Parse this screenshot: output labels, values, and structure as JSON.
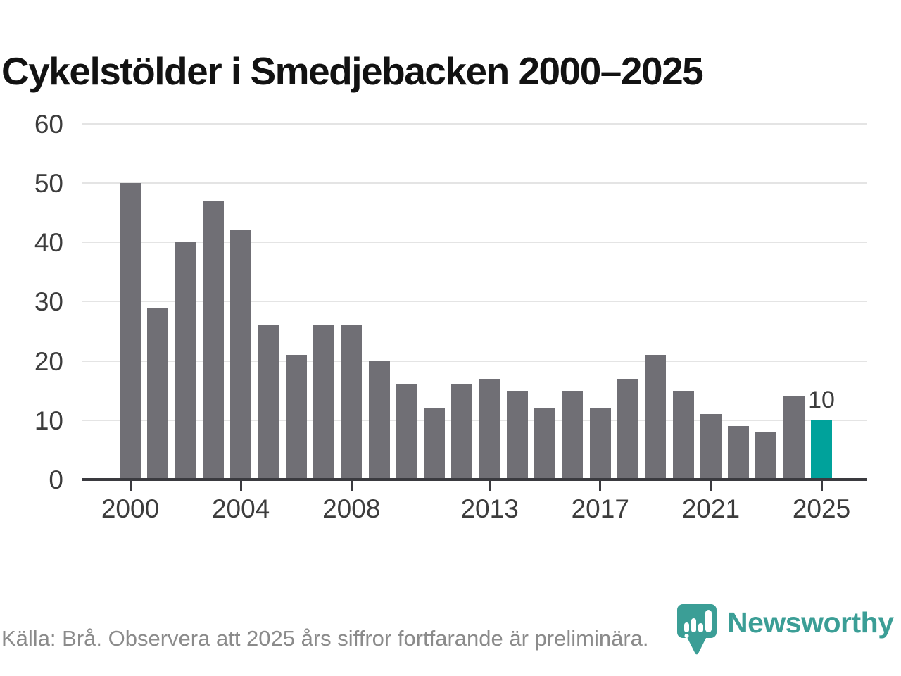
{
  "title": "Cykelstölder i Smedjebacken 2000–2025",
  "footer": {
    "source_note": "Källa: Brå. Observera att 2025 års siffror fortfarande är preliminära."
  },
  "branding": {
    "logo_text": "Newsworthy",
    "logo_icon": "newsworthy-pin-barchart-icon"
  },
  "colors": {
    "bar": "#706F75",
    "highlight": "#00A29B",
    "axis": "#3A3A3F",
    "grid": "#E4E4E4",
    "label": "#3C3C3C",
    "footer_text": "#8B8B8B",
    "logo": "#3B9E96"
  },
  "chart_data": {
    "type": "bar",
    "title": "Cykelstölder i Smedjebacken 2000–2025",
    "years": [
      2000,
      2001,
      2002,
      2003,
      2004,
      2005,
      2006,
      2007,
      2008,
      2009,
      2010,
      2011,
      2012,
      2013,
      2014,
      2015,
      2016,
      2017,
      2018,
      2019,
      2020,
      2021,
      2022,
      2023,
      2024,
      2025
    ],
    "values": [
      50,
      29,
      40,
      47,
      42,
      26,
      21,
      26,
      26,
      20,
      16,
      12,
      16,
      17,
      15,
      12,
      15,
      12,
      17,
      21,
      15,
      11,
      9,
      8,
      14,
      10
    ],
    "highlight": {
      "year": 2025,
      "label": "10"
    },
    "y_ticks": [
      0,
      10,
      20,
      30,
      40,
      50,
      60
    ],
    "x_tick_years": [
      2000,
      2004,
      2008,
      2013,
      2017,
      2021,
      2025
    ],
    "ylim": [
      0,
      60
    ],
    "grid": "horizontal",
    "legend": "none",
    "xlabel": "",
    "ylabel": ""
  }
}
